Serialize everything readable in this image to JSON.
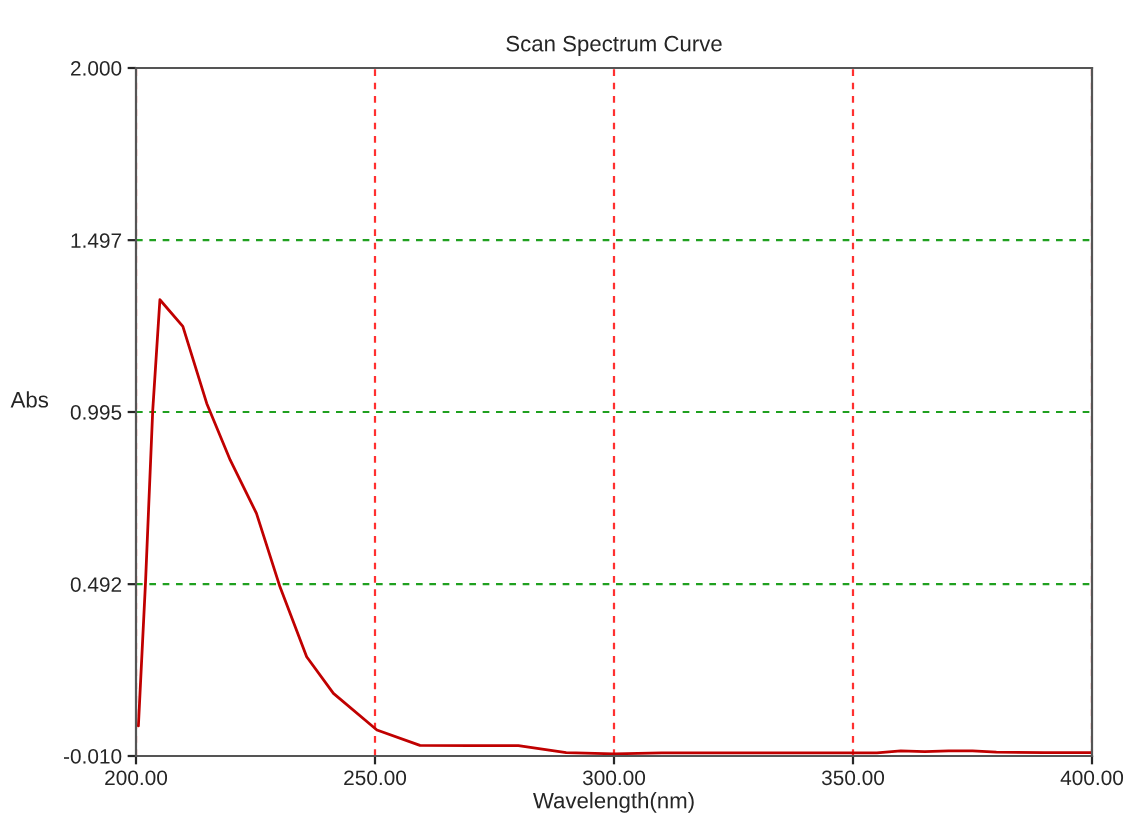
{
  "chart_data": {
    "type": "line",
    "title": "Scan Spectrum Curve",
    "xlabel": "Wavelength(nm)",
    "ylabel": "Abs",
    "series": [
      {
        "color": "#c00000",
        "x": [
          200.5,
          202,
          203.5,
          205,
          209.8,
          214.8,
          219.7,
          225.2,
          230.1,
          235.7,
          241.3,
          250.4,
          259.4,
          270,
          280,
          290,
          300,
          310,
          320,
          330,
          340,
          350,
          355,
          360,
          365,
          370,
          375,
          380,
          390,
          400
        ],
        "values": [
          0.078,
          0.5,
          1.0,
          1.323,
          1.245,
          1.02,
          0.855,
          0.699,
          0.485,
          0.28,
          0.173,
          0.066,
          0.021,
          0.02,
          0.02,
          0.0,
          -0.004,
          -0.001,
          -0.001,
          -0.001,
          -0.001,
          -0.001,
          -0.001,
          0.005,
          0.003,
          0.005,
          0.005,
          0.001,
          0.0,
          0.0
        ]
      }
    ],
    "xlim": [
      200,
      400
    ],
    "ylim": [
      -0.01,
      2.0
    ],
    "xticks": [
      {
        "value": 200,
        "label": "200.00"
      },
      {
        "value": 250,
        "label": "250.00"
      },
      {
        "value": 300,
        "label": "300.00"
      },
      {
        "value": 350,
        "label": "350.00"
      },
      {
        "value": 400,
        "label": "400.00"
      }
    ],
    "yticks": [
      {
        "value": -0.01,
        "label": "-0.010"
      },
      {
        "value": 0.492,
        "label": "0.492"
      },
      {
        "value": 0.995,
        "label": "0.995"
      },
      {
        "value": 1.497,
        "label": "1.497"
      },
      {
        "value": 2.0,
        "label": "2.000"
      }
    ],
    "grid": true,
    "line_style": "solid"
  }
}
